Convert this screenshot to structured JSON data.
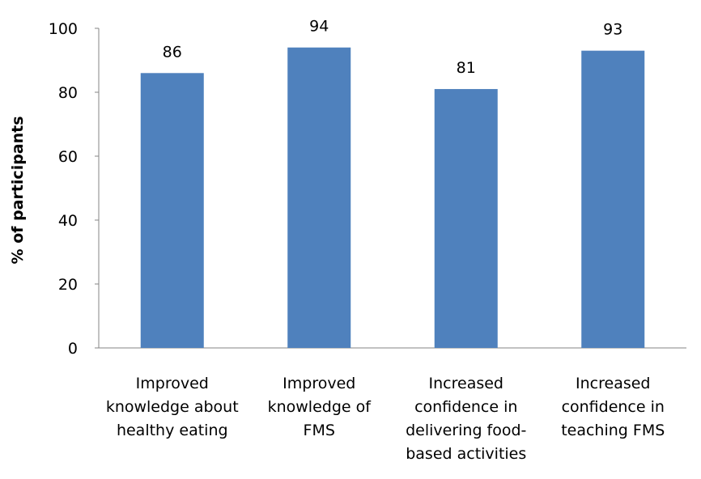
{
  "chart_data": {
    "type": "bar",
    "title": "",
    "xlabel": "",
    "ylabel": "% of participants",
    "ylim": [
      0,
      100
    ],
    "yticks": [
      0,
      20,
      40,
      60,
      80,
      100
    ],
    "categories": [
      [
        "Improved",
        "knowledge about",
        "healthy eating"
      ],
      [
        "Improved",
        "knowledge of",
        "FMS"
      ],
      [
        "Increased",
        "confidence in",
        "delivering food-",
        "based activities"
      ],
      [
        "Increased",
        "confidence in",
        "teaching FMS"
      ]
    ],
    "values": [
      86,
      94,
      81,
      93
    ],
    "data_labels": [
      "86",
      "94",
      "81",
      "93"
    ],
    "bar_color": "#4f81bd",
    "grid": false,
    "legend": "none"
  }
}
